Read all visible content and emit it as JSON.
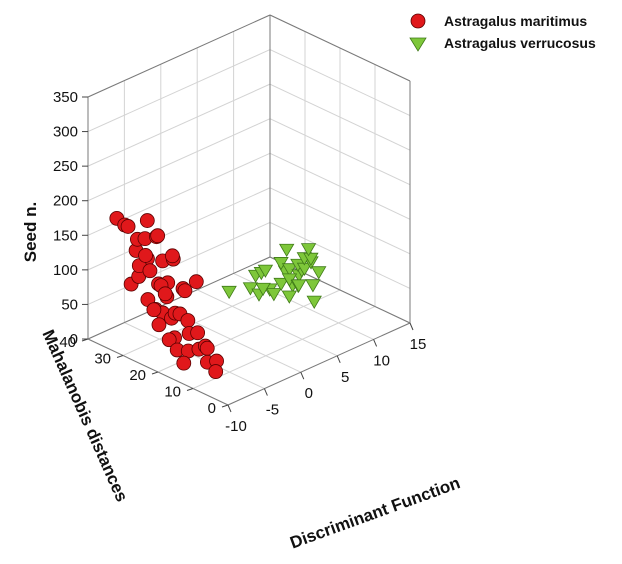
{
  "chart_data": {
    "type": "scatter",
    "title": "",
    "xlabel": "Discriminant Function",
    "ylabel": "Mahalanobis distances",
    "zlabel": "Seed n.",
    "xlim": [
      -10,
      15
    ],
    "ylim": [
      0,
      40
    ],
    "zlim": [
      0,
      350
    ],
    "x_ticks": [
      "-10",
      "-5",
      "0",
      "5",
      "10",
      "15"
    ],
    "y_ticks": [
      "0",
      "10",
      "20",
      "30",
      "40"
    ],
    "z_ticks": [
      "0",
      "50",
      "100",
      "150",
      "200",
      "250",
      "300",
      "350"
    ],
    "grid": true,
    "legend_position": "top-right",
    "colors": {
      "maritimus": "#e0181b",
      "verrucosus": "#7ec73a"
    },
    "series": [
      {
        "name": "Astragalus maritimus",
        "marker": "circle",
        "points": [
          [
            -6.8,
            32,
            110
          ],
          [
            -7.2,
            27,
            60
          ],
          [
            -7.5,
            22,
            30
          ],
          [
            -7.9,
            17,
            10
          ],
          [
            -6.9,
            30,
            130
          ],
          [
            -6.5,
            31,
            150
          ],
          [
            -6.2,
            28,
            160
          ],
          [
            -5.8,
            35,
            120
          ],
          [
            -6.4,
            33,
            90
          ],
          [
            -6.0,
            36,
            70
          ],
          [
            -6.6,
            25,
            85
          ],
          [
            -6.3,
            20,
            100
          ],
          [
            -6.1,
            24,
            140
          ],
          [
            -5.9,
            26,
            75
          ],
          [
            -6.7,
            23,
            55
          ],
          [
            -6.2,
            19,
            40
          ],
          [
            -5.7,
            18,
            115
          ],
          [
            -6.0,
            29,
            50
          ],
          [
            -6.5,
            21,
            65
          ],
          [
            -5.6,
            22,
            95
          ],
          [
            -6.8,
            18,
            20
          ],
          [
            -6.3,
            16,
            25
          ],
          [
            -5.9,
            15,
            30
          ],
          [
            -6.1,
            14,
            10
          ],
          [
            -6.6,
            13,
            35
          ],
          [
            -5.8,
            12,
            15
          ],
          [
            -6.4,
            11,
            5
          ],
          [
            -6.0,
            17,
            45
          ],
          [
            -5.5,
            25,
            130
          ],
          [
            -5.4,
            30,
            150
          ],
          [
            -5.3,
            27,
            90
          ],
          [
            -5.2,
            33,
            110
          ],
          [
            -6.9,
            35,
            160
          ],
          [
            -7.0,
            38,
            165
          ],
          [
            -6.4,
            37,
            155
          ],
          [
            -6.1,
            34,
            140
          ],
          [
            -5.7,
            32,
            170
          ],
          [
            -6.3,
            30,
            105
          ],
          [
            -6.0,
            27,
            125
          ],
          [
            -5.6,
            29,
            85
          ],
          [
            -6.2,
            23,
            60
          ],
          [
            -6.5,
            27,
            35
          ],
          [
            -5.9,
            20,
            55
          ],
          [
            -6.7,
            26,
            95
          ],
          [
            -5.8,
            24,
            20
          ],
          [
            -6.4,
            22,
            10
          ],
          [
            -6.1,
            31,
            60
          ],
          [
            -5.5,
            28,
            45
          ]
        ]
      },
      {
        "name": "Astragalus verrucosus",
        "marker": "triangle-down",
        "points": [
          [
            6.5,
            34,
            5
          ],
          [
            7.5,
            30,
            15
          ],
          [
            8.2,
            29,
            5
          ],
          [
            7.8,
            27,
            20
          ],
          [
            8.6,
            28,
            40
          ],
          [
            9.0,
            30,
            30
          ],
          [
            8.8,
            26,
            10
          ],
          [
            9.3,
            25,
            55
          ],
          [
            9.5,
            23,
            35
          ],
          [
            9.0,
            22,
            15
          ],
          [
            9.7,
            21,
            60
          ],
          [
            10.0,
            24,
            45
          ],
          [
            10.3,
            22,
            25
          ],
          [
            10.1,
            20,
            70
          ],
          [
            10.6,
            21,
            50
          ],
          [
            10.8,
            19,
            30
          ],
          [
            10.5,
            18,
            10
          ],
          [
            11.0,
            20,
            65
          ],
          [
            11.2,
            23,
            40
          ],
          [
            9.8,
            26,
            20
          ],
          [
            9.2,
            28,
            10
          ],
          [
            8.7,
            31,
            25
          ],
          [
            11.5,
            21,
            55
          ],
          [
            11.3,
            24,
            30
          ],
          [
            10.9,
            25,
            15
          ],
          [
            10.4,
            26,
            35
          ],
          [
            9.6,
            24,
            75
          ],
          [
            10.2,
            19,
            85
          ],
          [
            11.6,
            19,
            45
          ],
          [
            10.7,
            23,
            20
          ]
        ]
      }
    ]
  }
}
